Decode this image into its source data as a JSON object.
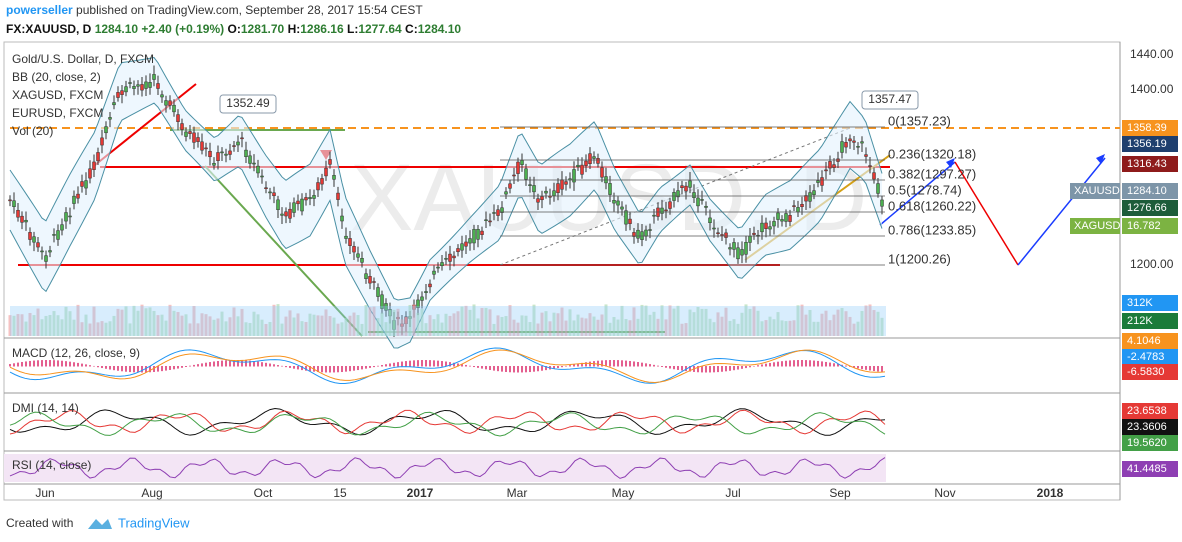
{
  "header": {
    "author": "powerseller",
    "published": "published on TradingView.com, September 28, 2017 15:54 CEST"
  },
  "ticker": {
    "symbol": "FX:XAUUSD, D",
    "last": "1284.10",
    "change": "+2.40 (+0.19%)",
    "open_label": "O:",
    "open": "1281.70",
    "high_label": "H:",
    "high": "1286.16",
    "low_label": "L:",
    "low": "1277.64",
    "close_label": "C:",
    "close": "1284.10"
  },
  "legend": [
    "Gold/U.S. Dollar, D, FXCM",
    "BB (20, close, 2)",
    "XAGUSD, FXCM",
    "EURUSD, FXCM",
    "Vol (20)"
  ],
  "watermark": "XAUUSD, D",
  "callouts": [
    "1352.49",
    "1357.47"
  ],
  "fib_levels": [
    "0(1357.23)",
    "0.236(1320.18)",
    "0.382(1297.27)",
    "0.5(1278.74)",
    "0.618(1260.22)",
    "0.786(1233.85)",
    "1(1200.26)"
  ],
  "price_axis": [
    "1440.00",
    "1400.00",
    "1200.00"
  ],
  "price_tags": [
    {
      "label": "1358.39",
      "color": "#f7931e"
    },
    {
      "label": "1356.19",
      "color": "#1f3f6e"
    },
    {
      "label": "1316.43",
      "color": "#8e1b1b"
    },
    {
      "name": "XAUUSD",
      "label": "1284.10",
      "color": "#7d95a8"
    },
    {
      "label": "1276.66",
      "color": "#1d5c3a"
    },
    {
      "name": "XAGUSD",
      "label": "16.782",
      "color": "#7cb342"
    },
    {
      "label": "312K",
      "color": "#2196f3"
    },
    {
      "label": "212K",
      "color": "#1b7b3a"
    }
  ],
  "panels": [
    {
      "title": "MACD (12, 26, close, 9)",
      "tags": [
        {
          "label": "4.1046",
          "color": "#f7931e"
        },
        {
          "label": "-2.4783",
          "color": "#2196f3"
        },
        {
          "label": "-6.5830",
          "color": "#e53935"
        }
      ]
    },
    {
      "title": "DMI (14, 14)",
      "tags": [
        {
          "label": "23.6538",
          "color": "#e53935"
        },
        {
          "label": "23.3606",
          "color": "#111111"
        },
        {
          "label": "19.5620",
          "color": "#43a047"
        }
      ]
    },
    {
      "title": "RSI (14, close)",
      "tags": [
        {
          "label": "41.4485",
          "color": "#8e3fb3"
        }
      ]
    }
  ],
  "time_axis": [
    "Jun",
    "Aug",
    "Oct",
    "15",
    "2017",
    "Mar",
    "May",
    "Jul",
    "Sep",
    "Nov",
    "2018"
  ],
  "footer": {
    "created": "Created with",
    "brand": "TradingView"
  }
}
